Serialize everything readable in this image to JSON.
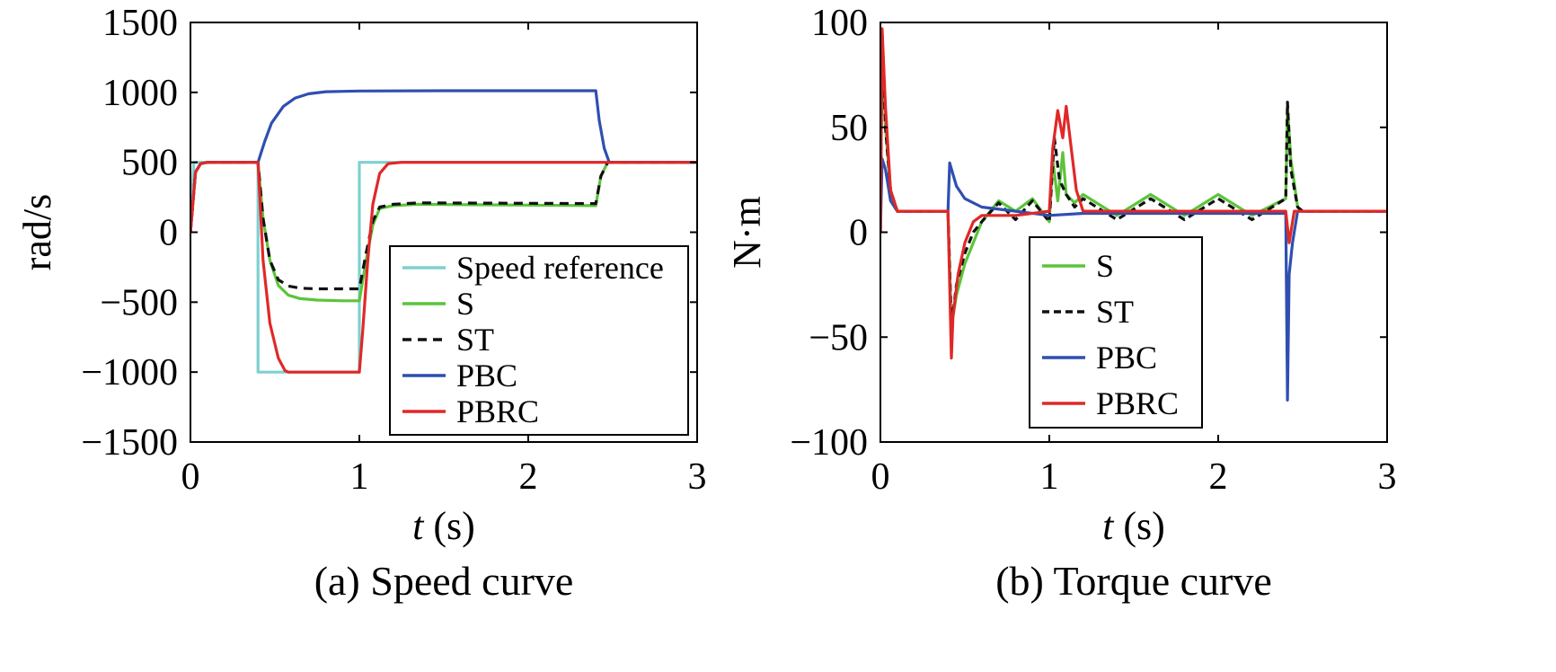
{
  "chart_data": [
    {
      "type": "line",
      "caption": "(a) Speed curve",
      "xlabel_italic": "t",
      "xlabel_rest": " (s)",
      "ylabel": "rad/s",
      "xlim": [
        0,
        3
      ],
      "ylim": [
        -1500,
        1500
      ],
      "xticks": [
        0,
        1,
        2,
        3
      ],
      "yticks": [
        -1500,
        -1000,
        -500,
        0,
        500,
        1000,
        1500
      ],
      "ytick_labels": [
        "−1500",
        "−1000",
        "−500",
        "0",
        "500",
        "1000",
        "1500"
      ],
      "grid": false,
      "legend_position": "bottom-right",
      "series": [
        {
          "name": "Speed reference",
          "color": "#7fd0d0",
          "dash": "",
          "x": [
            0,
            0.02,
            0.4,
            0.4,
            1.0,
            1.0,
            3.0
          ],
          "y": [
            0,
            500,
            500,
            -1000,
            -1000,
            500,
            500
          ]
        },
        {
          "name": "S",
          "color": "#5cc43a",
          "dash": "",
          "x": [
            0,
            0.03,
            0.06,
            0.1,
            0.4,
            0.43,
            0.47,
            0.52,
            0.58,
            0.65,
            0.75,
            0.9,
            1.0,
            1.04,
            1.08,
            1.12,
            1.2,
            1.35,
            2.4,
            2.43,
            2.47,
            3.0
          ],
          "y": [
            0,
            430,
            490,
            500,
            500,
            100,
            -200,
            -380,
            -450,
            -475,
            -485,
            -490,
            -490,
            -200,
            50,
            170,
            190,
            200,
            190,
            400,
            500,
            500
          ]
        },
        {
          "name": "ST",
          "color": "#111111",
          "dash": "10,7",
          "x": [
            0,
            0.03,
            0.06,
            0.1,
            0.4,
            0.43,
            0.47,
            0.52,
            0.58,
            0.65,
            0.75,
            0.9,
            1.0,
            1.04,
            1.08,
            1.12,
            1.2,
            1.35,
            2.4,
            2.43,
            2.47,
            3.0
          ],
          "y": [
            0,
            430,
            490,
            500,
            500,
            100,
            -200,
            -340,
            -385,
            -400,
            -405,
            -405,
            -405,
            -150,
            80,
            180,
            200,
            210,
            205,
            400,
            500,
            500
          ]
        },
        {
          "name": "PBC",
          "color": "#2f4fb0",
          "dash": "",
          "x": [
            0,
            0.03,
            0.06,
            0.1,
            0.4,
            0.44,
            0.48,
            0.55,
            0.62,
            0.7,
            0.8,
            1.0,
            1.5,
            2.4,
            2.42,
            2.45,
            2.48,
            3.0
          ],
          "y": [
            0,
            430,
            490,
            500,
            500,
            650,
            780,
            900,
            960,
            990,
            1005,
            1010,
            1012,
            1012,
            800,
            600,
            500,
            500
          ]
        },
        {
          "name": "PBRC",
          "color": "#e02828",
          "dash": "",
          "x": [
            0,
            0.03,
            0.06,
            0.1,
            0.4,
            0.43,
            0.47,
            0.52,
            0.56,
            0.58,
            1.0,
            1.02,
            1.05,
            1.08,
            1.12,
            1.17,
            1.25,
            3.0
          ],
          "y": [
            0,
            430,
            490,
            500,
            500,
            -200,
            -650,
            -900,
            -990,
            -1000,
            -1000,
            -700,
            -200,
            200,
            420,
            490,
            500,
            500
          ]
        }
      ]
    },
    {
      "type": "line",
      "caption": "(b) Torque curve",
      "xlabel_italic": "t",
      "xlabel_rest": " (s)",
      "ylabel": "N·m",
      "xlim": [
        0,
        3
      ],
      "ylim": [
        -100,
        100
      ],
      "xticks": [
        0,
        1,
        2,
        3
      ],
      "yticks": [
        -100,
        -50,
        0,
        50,
        100
      ],
      "ytick_labels": [
        "−100",
        "−50",
        "0",
        "50",
        "100"
      ],
      "grid": false,
      "legend_position": "bottom-center",
      "series": [
        {
          "name": "S",
          "color": "#5cc43a",
          "dash": "",
          "x": [
            0,
            0.01,
            0.03,
            0.06,
            0.1,
            0.4,
            0.42,
            0.45,
            0.5,
            0.55,
            0.6,
            0.7,
            0.8,
            0.9,
            1.0,
            1.02,
            1.05,
            1.08,
            1.1,
            1.15,
            1.2,
            1.4,
            1.6,
            1.8,
            2.0,
            2.2,
            2.4,
            2.41,
            2.43,
            2.47,
            2.5,
            3.0
          ],
          "y": [
            0,
            95,
            50,
            20,
            10,
            10,
            -45,
            -30,
            -15,
            -5,
            5,
            15,
            10,
            16,
            5,
            35,
            15,
            38,
            18,
            14,
            18,
            8,
            18,
            8,
            18,
            8,
            16,
            60,
            35,
            12,
            10,
            10
          ]
        },
        {
          "name": "ST",
          "color": "#111111",
          "dash": "8,5",
          "x": [
            0,
            0.01,
            0.03,
            0.06,
            0.1,
            0.4,
            0.42,
            0.45,
            0.5,
            0.55,
            0.6,
            0.7,
            0.8,
            0.9,
            1.0,
            1.03,
            1.06,
            1.1,
            1.15,
            1.2,
            1.4,
            1.6,
            1.8,
            2.0,
            2.2,
            2.4,
            2.41,
            2.43,
            2.47,
            2.5,
            3.0
          ],
          "y": [
            0,
            95,
            50,
            20,
            10,
            10,
            -45,
            -25,
            -10,
            0,
            5,
            14,
            6,
            15,
            5,
            45,
            25,
            18,
            12,
            16,
            6,
            16,
            6,
            16,
            6,
            16,
            62,
            30,
            12,
            10,
            10
          ]
        },
        {
          "name": "PBC",
          "color": "#2f4fb0",
          "dash": "",
          "x": [
            0,
            0.01,
            0.03,
            0.06,
            0.1,
            0.4,
            0.41,
            0.45,
            0.5,
            0.6,
            0.8,
            1.0,
            1.2,
            1.6,
            2.0,
            2.4,
            2.41,
            2.42,
            2.44,
            2.47,
            3.0
          ],
          "y": [
            0,
            35,
            30,
            15,
            10,
            10,
            33,
            22,
            16,
            12,
            10,
            8,
            9,
            9,
            9,
            9,
            -80,
            -20,
            -5,
            10,
            10
          ]
        },
        {
          "name": "PBRC",
          "color": "#e02828",
          "dash": "",
          "x": [
            0,
            0.01,
            0.03,
            0.06,
            0.1,
            0.4,
            0.42,
            0.43,
            0.46,
            0.5,
            0.55,
            0.6,
            0.8,
            1.0,
            1.02,
            1.05,
            1.08,
            1.1,
            1.13,
            1.16,
            1.2,
            1.6,
            2.0,
            2.4,
            2.42,
            2.45,
            3.0
          ],
          "y": [
            0,
            97,
            60,
            20,
            10,
            10,
            -60,
            -40,
            -20,
            -5,
            5,
            8,
            8,
            10,
            40,
            58,
            45,
            60,
            40,
            20,
            10,
            10,
            10,
            10,
            -5,
            10,
            10
          ]
        }
      ]
    }
  ]
}
